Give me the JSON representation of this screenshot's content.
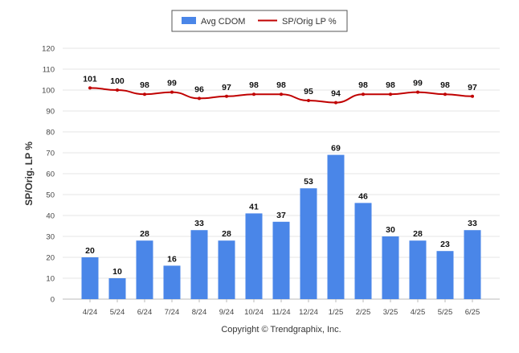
{
  "chart_data": {
    "type": "bar",
    "categories": [
      "4/24",
      "5/24",
      "6/24",
      "7/24",
      "8/24",
      "9/24",
      "10/24",
      "11/24",
      "12/24",
      "1/25",
      "2/25",
      "3/25",
      "4/25",
      "5/25",
      "6/25"
    ],
    "series": [
      {
        "name": "Avg CDOM",
        "type": "bar",
        "color": "#4a86e8",
        "values": [
          20,
          10,
          28,
          16,
          33,
          28,
          41,
          37,
          53,
          69,
          46,
          30,
          28,
          23,
          33
        ]
      },
      {
        "name": "SP/Orig LP %",
        "type": "line",
        "color": "#c00000",
        "values": [
          101,
          100,
          98,
          99,
          96,
          97,
          98,
          98,
          95,
          94,
          98,
          98,
          99,
          98,
          97
        ]
      }
    ],
    "ylabel": "SP/Orig. LP %",
    "ylim": [
      0,
      120
    ],
    "yticks": [
      0,
      10,
      20,
      30,
      40,
      50,
      60,
      70,
      80,
      90,
      100,
      110,
      120
    ],
    "legend": "top-center",
    "grid": true,
    "footer": "Copyright © Trendgraphix, Inc."
  }
}
